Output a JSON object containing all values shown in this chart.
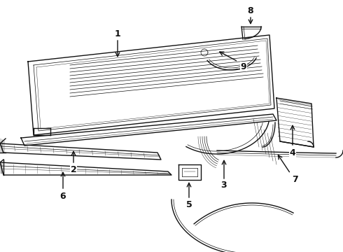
{
  "bg_color": "#ffffff",
  "line_color": "#111111",
  "label_color": "#000000",
  "lw_main": 1.0,
  "lw_thin": 0.5,
  "lw_thick": 1.5,
  "fig_w": 4.9,
  "fig_h": 3.6,
  "dpi": 100
}
